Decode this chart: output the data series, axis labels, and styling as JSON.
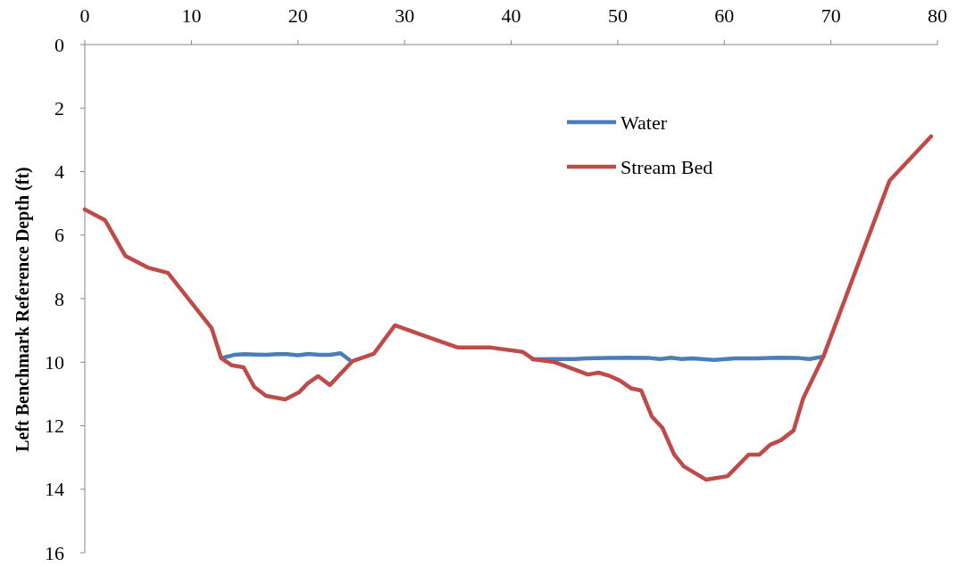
{
  "chart_data": {
    "type": "line",
    "ylabel": "Left Benchmark Reference Depth (ft)",
    "xlim": [
      0,
      80
    ],
    "xticks": [
      0,
      10,
      20,
      30,
      40,
      50,
      60,
      70,
      80
    ],
    "ylim": [
      16,
      0
    ],
    "yticks": [
      0,
      2,
      4,
      6,
      8,
      10,
      12,
      14,
      16
    ],
    "grid": false,
    "legend": "top right",
    "series": [
      {
        "name": "Water",
        "color": "#4a7ebb",
        "x": [
          13,
          14,
          15,
          16,
          17,
          18,
          19,
          20,
          21,
          22,
          23,
          24,
          25,
          33,
          42,
          44,
          46,
          47,
          49,
          51,
          53,
          54,
          55,
          56,
          57,
          59,
          61,
          63,
          65,
          67,
          68,
          69.3
        ],
        "values": [
          9.86,
          9.77,
          9.75,
          9.76,
          9.77,
          9.75,
          9.75,
          9.78,
          9.74,
          9.77,
          9.77,
          9.72,
          9.97,
          null,
          9.91,
          9.9,
          9.9,
          9.88,
          9.87,
          9.86,
          9.87,
          9.9,
          9.86,
          9.9,
          9.88,
          9.93,
          9.88,
          9.88,
          9.86,
          9.87,
          9.9,
          9.82
        ]
      },
      {
        "name": "Stream Bed",
        "color": "#be4b48",
        "x": [
          0,
          1.9,
          3.8,
          5.9,
          7.8,
          11.9,
          12.8,
          13.8,
          14.9,
          15.9,
          17,
          18.8,
          20.1,
          20.9,
          21.9,
          23,
          25.1,
          27.1,
          29.1,
          32.2,
          35,
          38.1,
          41.1,
          42.1,
          44,
          46.1,
          47.2,
          48.2,
          49.3,
          50.2,
          51.3,
          52.2,
          53.2,
          54.2,
          55.3,
          56.2,
          58.3,
          60.3,
          62.3,
          63.3,
          64.3,
          65.3,
          66.5,
          67.4,
          69.3,
          75.5,
          79.4
        ],
        "values": [
          5.19,
          5.53,
          6.65,
          7.02,
          7.19,
          8.93,
          9.88,
          10.1,
          10.16,
          10.78,
          11.06,
          11.17,
          10.95,
          10.67,
          10.44,
          10.72,
          9.97,
          9.74,
          8.84,
          9.21,
          9.54,
          9.54,
          9.68,
          9.91,
          9.99,
          10.25,
          10.39,
          10.33,
          10.44,
          10.58,
          10.83,
          10.89,
          11.71,
          12.07,
          12.91,
          13.28,
          13.7,
          13.59,
          12.91,
          12.91,
          12.6,
          12.46,
          12.15,
          11.14,
          9.82,
          4.29,
          2.89
        ]
      }
    ]
  }
}
